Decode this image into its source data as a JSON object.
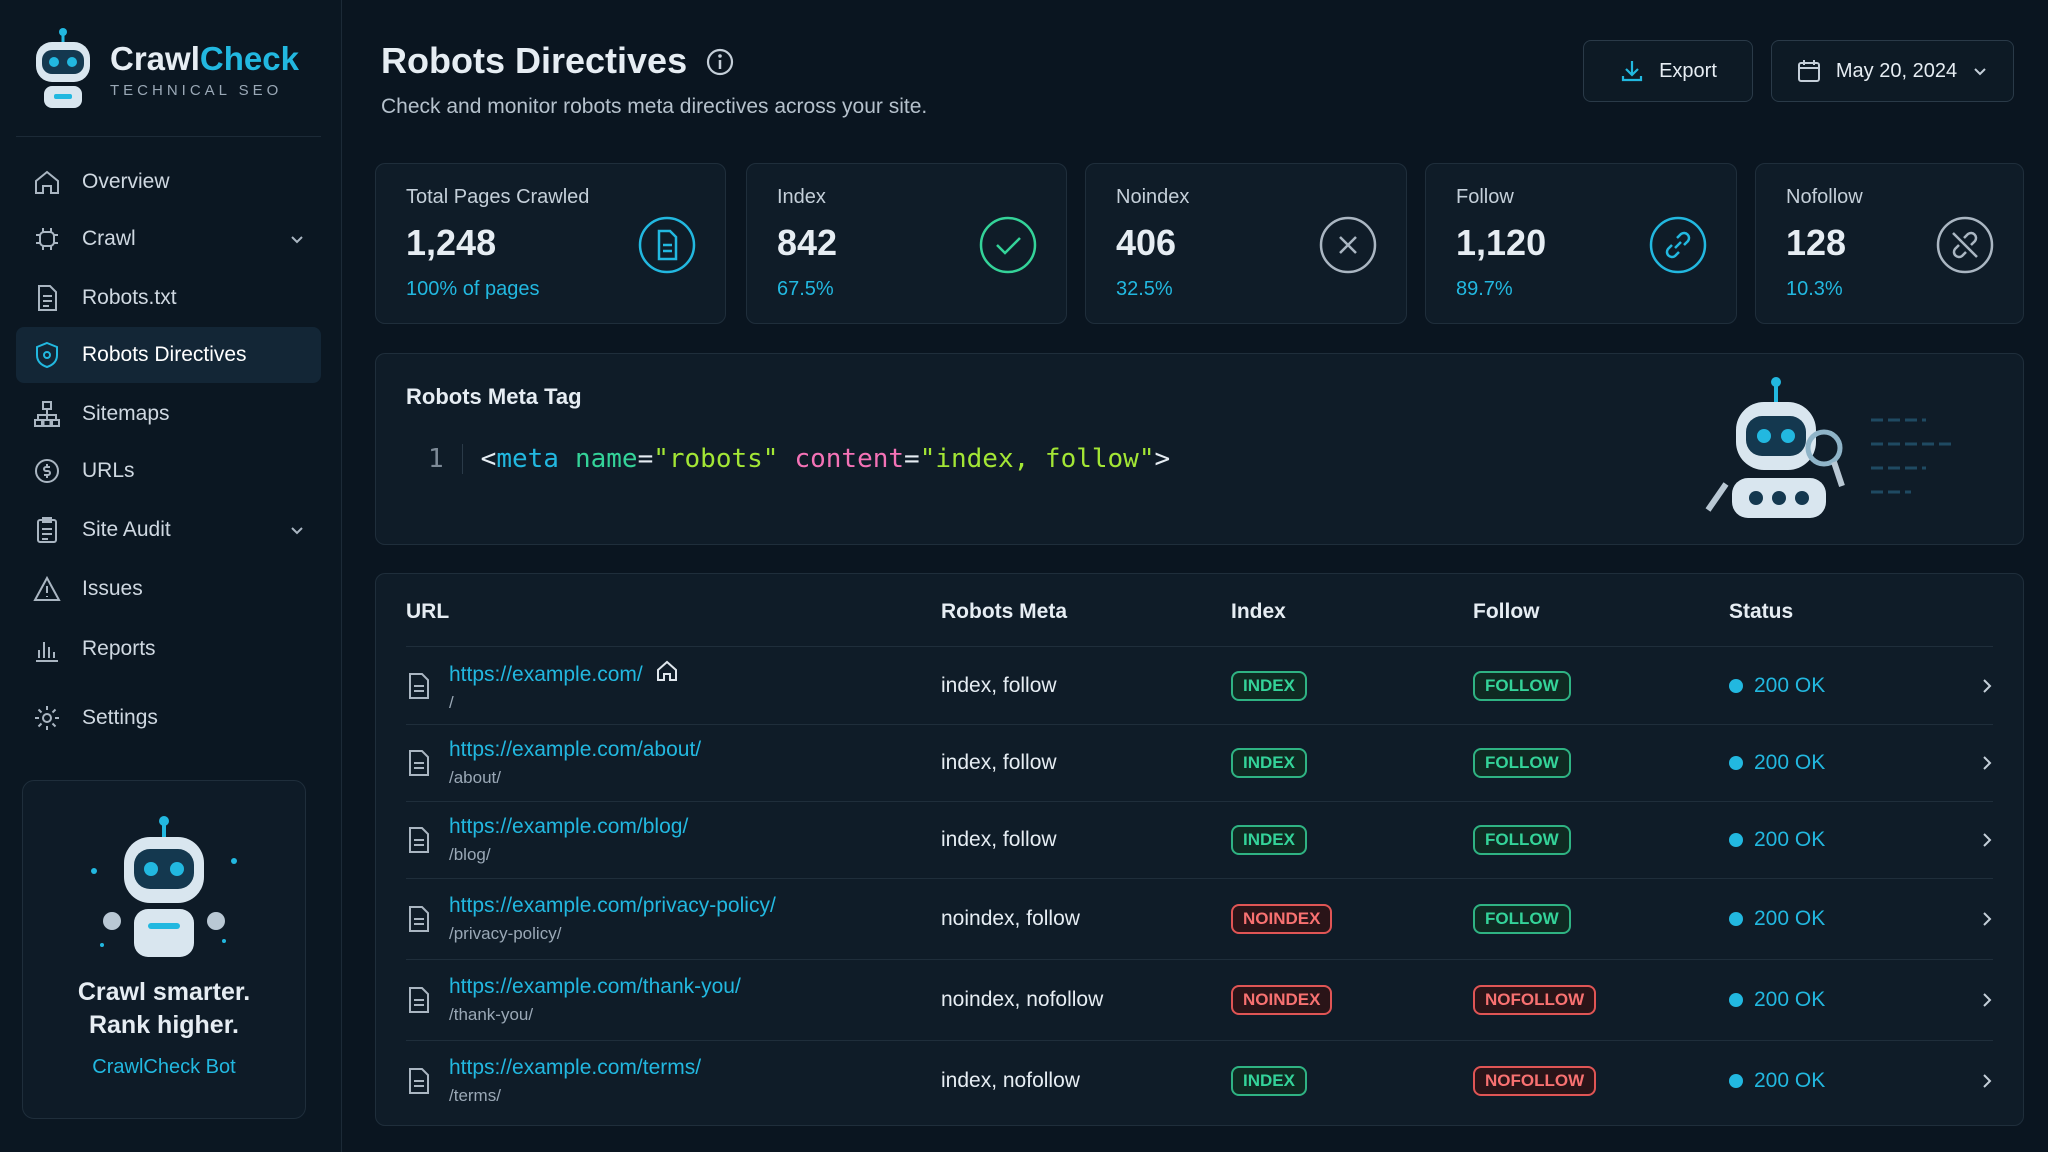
{
  "brand": {
    "name_a": "Crawl",
    "name_b": "Check",
    "tagline": "TECHNICAL SEO"
  },
  "nav": [
    "Overview",
    "Crawl",
    "Robots.txt",
    "Robots Directives",
    "Sitemaps",
    "URLs",
    "Site Audit",
    "Issues",
    "Reports",
    "Settings"
  ],
  "promo": {
    "line1": "Crawl smarter.",
    "line2": "Rank higher.",
    "link": "CrawlCheck Bot"
  },
  "header": {
    "title": "Robots Directives",
    "subtitle": "Check and monitor robots meta directives across your site.",
    "export": "Export",
    "date": "May 20, 2024"
  },
  "stats": [
    {
      "label": "Total Pages Crawled",
      "value": "1,248",
      "sub": "100% of pages"
    },
    {
      "label": "Index",
      "value": "842",
      "sub": "67.5%"
    },
    {
      "label": "Noindex",
      "value": "406",
      "sub": "32.5%"
    },
    {
      "label": "Follow",
      "value": "1,120",
      "sub": "89.7%"
    },
    {
      "label": "Nofollow",
      "value": "128",
      "sub": "10.3%"
    }
  ],
  "meta_tag": {
    "title": "Robots Meta Tag",
    "line": "1",
    "tokens": [
      "<",
      "meta",
      "name",
      "=",
      "\"robots\"",
      "content",
      "=",
      "\"index, follow\"",
      ">"
    ]
  },
  "table": {
    "columns": [
      "URL",
      "Robots Meta",
      "Index",
      "Follow",
      "Status"
    ],
    "rows": [
      [
        "https://example.com/",
        "/",
        "index, follow",
        "INDEX",
        "FOLLOW",
        "200 OK"
      ],
      [
        "https://example.com/about/",
        "/about/",
        "index, follow",
        "INDEX",
        "FOLLOW",
        "200 OK"
      ],
      [
        "https://example.com/blog/",
        "/blog/",
        "index, follow",
        "INDEX",
        "FOLLOW",
        "200 OK"
      ],
      [
        "https://example.com/privacy-policy/",
        "/privacy-policy/",
        "noindex, follow",
        "NOINDEX",
        "FOLLOW",
        "200 OK"
      ],
      [
        "https://example.com/thank-you/",
        "/thank-you/",
        "noindex, nofollow",
        "NOINDEX",
        "NOFOLLOW",
        "200 OK"
      ],
      [
        "https://example.com/terms/",
        "/terms/",
        "index, nofollow",
        "INDEX",
        "NOFOLLOW",
        "200 OK"
      ]
    ]
  }
}
